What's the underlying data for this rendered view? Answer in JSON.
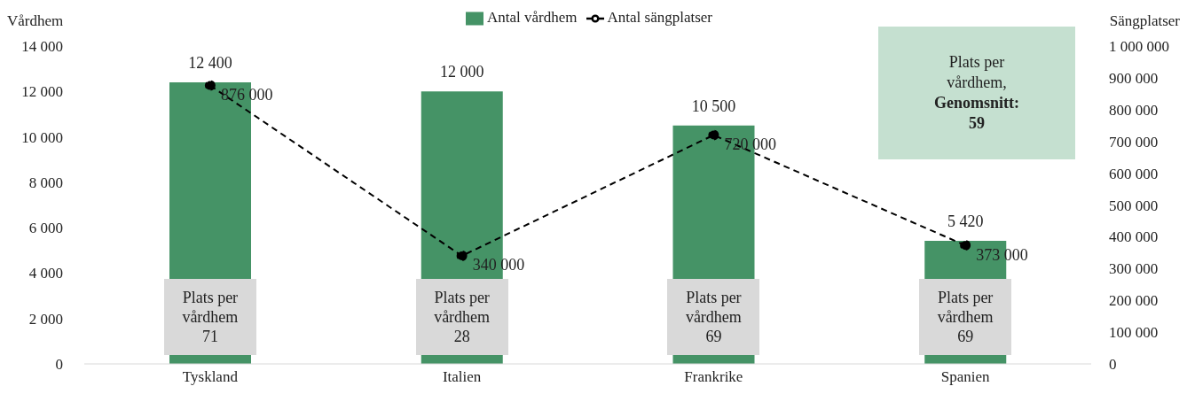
{
  "chart_data": {
    "type": "bar",
    "categories": [
      "Tyskland",
      "Italien",
      "Frankrike",
      "Spanien"
    ],
    "series": [
      {
        "name": "Antal vårdhem",
        "color": "#459366",
        "values": [
          12400,
          12000,
          10500,
          5420
        ]
      },
      {
        "name": "Antal sängplatser",
        "type": "line",
        "axis": "y2",
        "color": "#000000",
        "values": [
          876000,
          340000,
          720000,
          373000
        ],
        "marker": "circle",
        "line_style": "dashed"
      }
    ],
    "ylabel": "Vårdhem",
    "y2label": "Sängplatser",
    "ylim": [
      0,
      14000
    ],
    "yticks": [
      0,
      2000,
      4000,
      6000,
      8000,
      10000,
      12000,
      14000
    ],
    "y2lim": [
      0,
      1000000
    ],
    "y2ticks": [
      0,
      100000,
      200000,
      300000,
      400000,
      500000,
      600000,
      700000,
      800000,
      900000,
      1000000
    ],
    "data_labels": true,
    "grid": false,
    "legend": "top",
    "annotations": [
      "Plats per\nvårdhem\n71",
      "Plats per\nvårdhem\n28",
      "Plats per\nvårdhem\n69",
      "Plats per\nvårdhem\n69",
      "Plats per\nvårdhem,\nGenomsnitt:\n59"
    ]
  }
}
